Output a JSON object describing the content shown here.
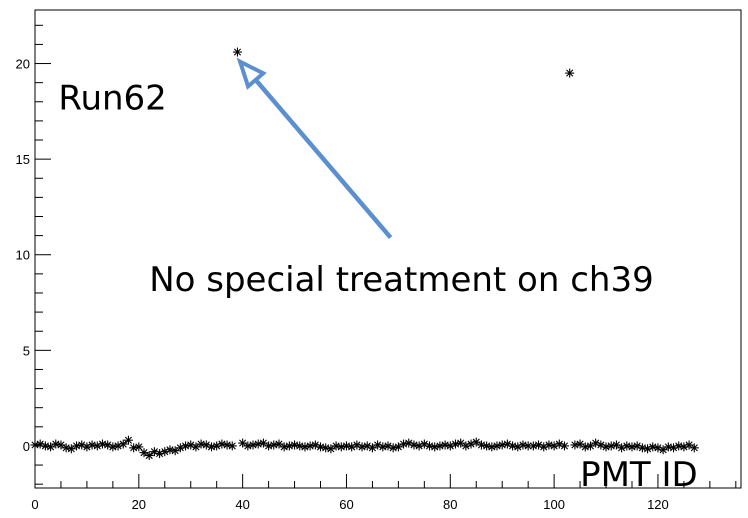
{
  "chart_data": {
    "type": "scatter",
    "title": "",
    "xlabel": "",
    "ylabel": "",
    "xlim": [
      0,
      136
    ],
    "ylim": [
      -2.2,
      22.8
    ],
    "x_ticks": [
      0,
      20,
      40,
      60,
      80,
      100,
      120
    ],
    "y_ticks": [
      0,
      5,
      10,
      15,
      20
    ],
    "grid": false,
    "marker": "asterisk",
    "series": [
      {
        "x": [
          0,
          1,
          2,
          3,
          4,
          5,
          6,
          7,
          8,
          9,
          10,
          11,
          12,
          13,
          14,
          15,
          16,
          17,
          18,
          19,
          20,
          21,
          22,
          23,
          24,
          25,
          26,
          27,
          28,
          29,
          30,
          31,
          32,
          33,
          34,
          35,
          36,
          37,
          38,
          39,
          40,
          41,
          42,
          43,
          44,
          45,
          46,
          47,
          48,
          49,
          50,
          51,
          52,
          53,
          54,
          55,
          56,
          57,
          58,
          59,
          60,
          61,
          62,
          63,
          64,
          65,
          66,
          67,
          68,
          69,
          70,
          71,
          72,
          73,
          74,
          75,
          76,
          77,
          78,
          79,
          80,
          81,
          82,
          83,
          84,
          85,
          86,
          87,
          88,
          89,
          90,
          91,
          92,
          93,
          94,
          95,
          96,
          97,
          98,
          99,
          100,
          101,
          102,
          103,
          104,
          105,
          106,
          107,
          108,
          109,
          110,
          111,
          112,
          113,
          114,
          115,
          116,
          117,
          118,
          119,
          120,
          121,
          122,
          123,
          124,
          125,
          126,
          127
        ],
        "y": [
          0.05,
          0.1,
          0,
          -0.05,
          0.1,
          0.05,
          -0.1,
          -0.15,
          0,
          0.05,
          -0.05,
          0.05,
          0,
          0.1,
          0.05,
          -0.05,
          0,
          0.1,
          0.3,
          -0.1,
          -0.05,
          -0.35,
          -0.5,
          -0.3,
          -0.4,
          -0.3,
          -0.2,
          -0.25,
          -0.1,
          0,
          0.05,
          -0.05,
          0.1,
          0.05,
          -0.05,
          0,
          0.1,
          0.05,
          0,
          20.6,
          0.15,
          0,
          0.05,
          0.1,
          0.15,
          0,
          0.05,
          0.1,
          -0.05,
          0,
          0.05,
          0,
          -0.05,
          0,
          0.05,
          -0.05,
          -0.1,
          -0.15,
          0,
          -0.05,
          0,
          -0.05,
          0.05,
          -0.05,
          0,
          -0.1,
          0.05,
          -0.05,
          0,
          -0.1,
          -0.05,
          0.1,
          0.15,
          0.05,
          0,
          0.1,
          0,
          -0.05,
          0,
          0.05,
          0,
          0.1,
          0.15,
          0,
          0.1,
          0.2,
          0.05,
          0,
          -0.05,
          0,
          0.05,
          0.1,
          0,
          -0.05,
          0.05,
          0,
          0,
          0.05,
          -0.05,
          0.05,
          0,
          0.1,
          0,
          19.5,
          0.05,
          0.1,
          -0.05,
          0,
          0.15,
          0.05,
          -0.05,
          0,
          0.05,
          -0.1,
          0,
          -0.05,
          0,
          -0.1,
          -0.15,
          -0.05,
          -0.1,
          -0.2,
          -0.05,
          -0.1,
          0,
          -0.05,
          0.05,
          -0.1
        ]
      }
    ],
    "annotations": [
      {
        "text": "Run62",
        "x": 4.5,
        "y": 17.6
      },
      {
        "text": "No special treatment on ch39",
        "x": 22,
        "y": 8.1
      },
      {
        "text": "PMT ID",
        "x": 105,
        "y": -2.1
      }
    ],
    "arrow": {
      "from": {
        "x": 68.5,
        "y": 10.9
      },
      "to": {
        "x": 39.5,
        "y": 20.1
      },
      "color": "#5b8fd0"
    }
  }
}
